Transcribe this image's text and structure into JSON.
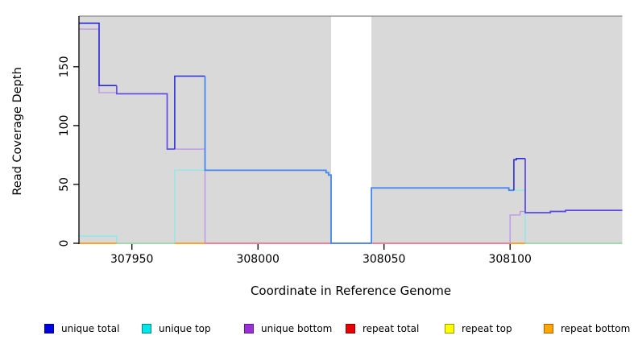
{
  "chart_data": {
    "type": "line",
    "subtype": "step-after",
    "title": "",
    "xlabel": "Coordinate in Reference Genome",
    "ylabel": "Read Coverage Depth",
    "xlim": [
      307929,
      308144.5
    ],
    "ylim": [
      0,
      193
    ],
    "xticks": [
      "307950",
      "308000",
      "308050",
      "308100"
    ],
    "xtick_values": [
      307950,
      308000,
      308050,
      308100
    ],
    "yticks": [
      "0",
      "50",
      "100",
      "150"
    ],
    "ytick_values": [
      0,
      50,
      100,
      150
    ],
    "grid": "off",
    "panel_background": "#d9d9d9",
    "gap_region": {
      "x_start": 308029,
      "x_end": 308045,
      "color": "#ffffff"
    },
    "legend_position": "bottom",
    "series": [
      {
        "name": "unique total",
        "color": "#0000e0",
        "points": [
          [
            307929,
            187
          ],
          [
            307937,
            134
          ],
          [
            307944,
            127
          ],
          [
            307964,
            80
          ],
          [
            307967,
            142
          ],
          [
            307979,
            62
          ],
          [
            308027,
            60
          ],
          [
            308028,
            58
          ],
          [
            308029,
            0
          ],
          [
            308045,
            47
          ],
          [
            308099.5,
            45
          ],
          [
            308101.5,
            71
          ],
          [
            308102.5,
            72
          ],
          [
            308106,
            26
          ],
          [
            308116,
            27
          ],
          [
            308122,
            28
          ]
        ]
      },
      {
        "name": "unique top",
        "color": "#00e5e5",
        "points": [
          [
            307929,
            6
          ],
          [
            307944,
            0
          ],
          [
            307967,
            62
          ],
          [
            308027,
            60
          ],
          [
            308028,
            58
          ],
          [
            308029,
            0
          ],
          [
            308045,
            47
          ],
          [
            308099.5,
            45
          ],
          [
            308106,
            0
          ]
        ]
      },
      {
        "name": "unique bottom",
        "color": "#9b30d9",
        "points": [
          [
            307929,
            182
          ],
          [
            307937,
            128
          ],
          [
            307944,
            127
          ],
          [
            307964,
            80
          ],
          [
            307979,
            0
          ],
          [
            308100,
            24
          ],
          [
            308104,
            27
          ],
          [
            308106,
            26
          ],
          [
            308116,
            27
          ],
          [
            308122,
            28
          ]
        ]
      },
      {
        "name": "repeat total",
        "color": "#e80000",
        "points": [
          [
            307929,
            0
          ]
        ]
      },
      {
        "name": "repeat top",
        "color": "#ffff00",
        "points": [
          [
            307929,
            0
          ]
        ]
      },
      {
        "name": "repeat bottom",
        "color": "#ffa500",
        "points": [
          [
            307929,
            0
          ]
        ]
      }
    ],
    "x_end": 308144.5,
    "render_segments": [
      {
        "name": "unique-top-line",
        "color": "#87ebeb",
        "width": 1.3,
        "pts": [
          [
            307929,
            6
          ],
          [
            307944,
            0
          ],
          [
            307967,
            62
          ],
          [
            308027,
            60
          ],
          [
            308028,
            58
          ],
          [
            308029,
            0
          ],
          [
            308045,
            47
          ],
          [
            308099.5,
            45
          ],
          [
            308106,
            0
          ]
        ],
        "end": 308144.5
      },
      {
        "name": "unique-bottom-line",
        "color": "#bd91e8",
        "width": 1.3,
        "pts": [
          [
            307929,
            182
          ],
          [
            307937,
            128
          ],
          [
            307944,
            127
          ],
          [
            307964,
            80
          ],
          [
            307979,
            0
          ],
          [
            308100,
            24
          ],
          [
            308104,
            27
          ],
          [
            308106,
            26
          ],
          [
            308116,
            27
          ],
          [
            308122,
            28
          ]
        ],
        "end": 308144.5
      },
      {
        "name": "zero-line-orange-a",
        "color": "#ff9e1b",
        "width": 1.8,
        "pts": [
          [
            307929,
            0
          ]
        ],
        "end": 307944
      },
      {
        "name": "zero-line-green-a",
        "color": "#96d7a0",
        "width": 1.5,
        "pts": [
          [
            307944,
            0
          ]
        ],
        "end": 307967
      },
      {
        "name": "zero-line-orange-b",
        "color": "#ff9e1b",
        "width": 1.8,
        "pts": [
          [
            307967,
            0
          ]
        ],
        "end": 307979
      },
      {
        "name": "zero-line-pink",
        "color": "#ef6e8e",
        "width": 1.5,
        "pts": [
          [
            307979,
            0
          ]
        ],
        "end": 308100
      },
      {
        "name": "zero-line-orange-c",
        "color": "#ff9e1b",
        "width": 1.8,
        "pts": [
          [
            308100,
            0
          ]
        ],
        "end": 308106
      },
      {
        "name": "zero-line-green-b",
        "color": "#96d7a0",
        "width": 1.5,
        "pts": [
          [
            308106,
            0
          ]
        ],
        "end": 308144.5
      },
      {
        "name": "unique-total-line-1",
        "color": "#2b2bdb",
        "width": 1.6,
        "pts": [
          [
            307929,
            187
          ],
          [
            307937,
            134
          ]
        ],
        "end": 307944
      },
      {
        "name": "unique-total-line-2",
        "color": "#5a49e2",
        "width": 1.6,
        "pts": [
          [
            307944,
            134
          ],
          [
            307944,
            127
          ],
          [
            307964,
            80
          ]
        ],
        "end": 307967
      },
      {
        "name": "unique-total-line-3",
        "color": "#2b2bdb",
        "width": 1.6,
        "pts": [
          [
            307967,
            80
          ],
          [
            307967,
            142
          ]
        ],
        "end": 307979
      },
      {
        "name": "unique-total-line-4",
        "color": "#4487f0",
        "width": 1.8,
        "pts": [
          [
            307979,
            142
          ],
          [
            307979,
            62
          ],
          [
            308027,
            60
          ],
          [
            308028,
            58
          ],
          [
            308029,
            0
          ]
        ],
        "end": 308045
      },
      {
        "name": "unique-total-line-5",
        "color": "#4487f0",
        "width": 1.8,
        "pts": [
          [
            308045,
            0
          ],
          [
            308045,
            47
          ],
          [
            308099.5,
            45
          ]
        ],
        "end": 308101.5
      },
      {
        "name": "unique-total-line-6",
        "color": "#2b2bdb",
        "width": 1.6,
        "pts": [
          [
            308101.5,
            45
          ],
          [
            308101.5,
            71
          ],
          [
            308102.5,
            72
          ]
        ],
        "end": 308106
      },
      {
        "name": "unique-total-line-7",
        "color": "#5a49e2",
        "width": 1.7,
        "pts": [
          [
            308106,
            72
          ],
          [
            308106,
            26
          ],
          [
            308116,
            27
          ],
          [
            308122,
            28
          ]
        ],
        "end": 308144.5
      }
    ]
  },
  "legend": {
    "items": [
      {
        "label": "unique total",
        "fill": "#0000e0",
        "border": "#000090"
      },
      {
        "label": "unique top",
        "fill": "#00e5e5",
        "border": "#008b8b"
      },
      {
        "label": "unique bottom",
        "fill": "#9b30d9",
        "border": "#5d1a86"
      },
      {
        "label": "repeat total",
        "fill": "#e80000",
        "border": "#8b0000"
      },
      {
        "label": "repeat top",
        "fill": "#ffff00",
        "border": "#9a9a00"
      },
      {
        "label": "repeat bottom",
        "fill": "#ffa500",
        "border": "#b06000"
      }
    ]
  },
  "axis_style": {
    "axis_color": "#000000",
    "top_border_color": "#8a8a8a",
    "tick_label_size": 14
  }
}
